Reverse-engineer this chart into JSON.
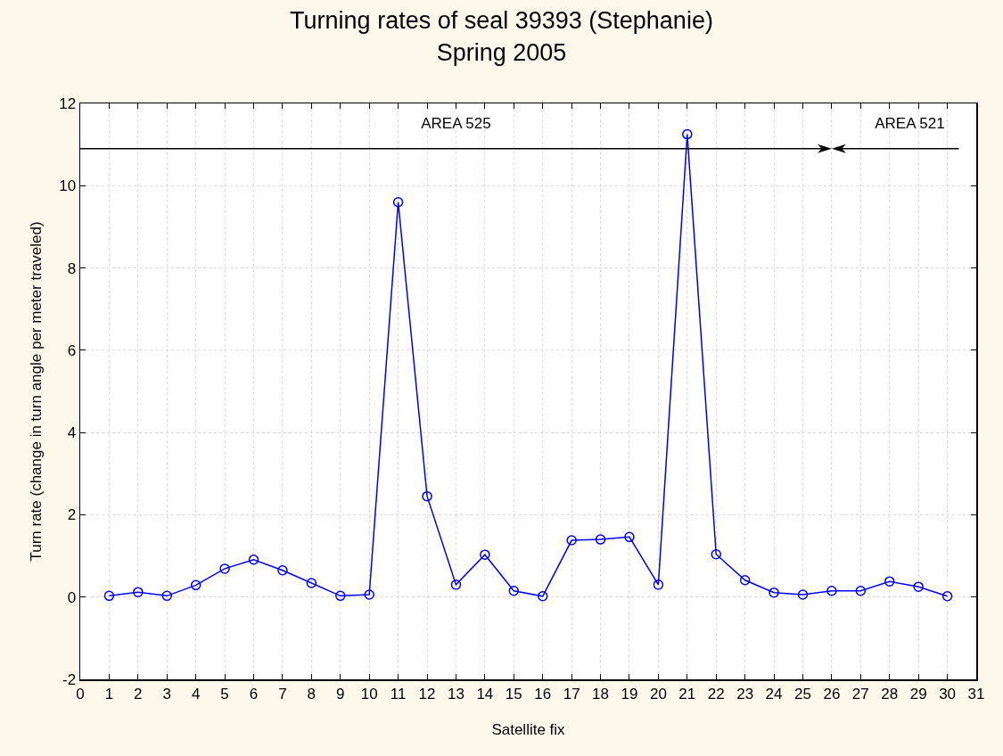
{
  "chart_data": {
    "type": "line",
    "title": "Turning rates of seal 39393 (Stephanie)",
    "subtitle": "Spring 2005",
    "xlabel": "Satellite fix",
    "ylabel": "Turn rate (change in turn angle per meter traveled)",
    "x": [
      1,
      2,
      3,
      4,
      5,
      6,
      7,
      8,
      9,
      10,
      11,
      12,
      13,
      14,
      15,
      16,
      17,
      18,
      19,
      20,
      21,
      22,
      23,
      24,
      25,
      26,
      27,
      28,
      29,
      30
    ],
    "series": [
      {
        "color": "#0000ff",
        "values": [
          0.03,
          0.12,
          0.03,
          0.29,
          0.69,
          0.91,
          0.65,
          0.34,
          0.03,
          0.06,
          9.6,
          2.45,
          0.3,
          1.03,
          0.15,
          0.02,
          1.38,
          1.4,
          1.46,
          0.3,
          11.25,
          1.04,
          0.41,
          0.11,
          0.06,
          0.15,
          0.15,
          0.38,
          0.25,
          0.02
        ]
      }
    ],
    "annotations": [
      "AREA 525",
      "AREA 521"
    ],
    "xlim": [
      0,
      31
    ],
    "xticks": [
      0,
      1,
      2,
      3,
      4,
      5,
      6,
      7,
      8,
      9,
      10,
      11,
      12,
      13,
      14,
      15,
      16,
      17,
      18,
      19,
      20,
      21,
      22,
      23,
      24,
      25,
      26,
      27,
      28,
      29,
      30,
      31
    ],
    "ylim": [
      -2,
      12
    ],
    "yticks": [
      -2,
      0,
      2,
      4,
      6,
      8,
      10,
      12
    ],
    "grid": true,
    "marker": "circle",
    "line_style": "solid"
  }
}
